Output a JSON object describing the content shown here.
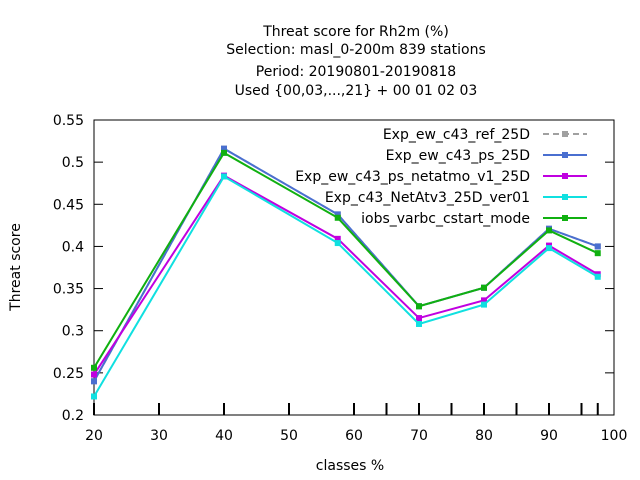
{
  "chart_data": {
    "type": "line",
    "title_lines": [
      "Threat score  for Rh2m (%)",
      "Selection: masl_0-200m    839 stations",
      "Period: 20190801-20190818",
      "Used {00,03,...,21} + 00 01 02 03"
    ],
    "xlabel": "classes %",
    "ylabel": "Threat score",
    "xlim": [
      20,
      100
    ],
    "ylim": [
      0.2,
      0.55
    ],
    "x_ticks": [
      20,
      30,
      40,
      50,
      60,
      70,
      80,
      90,
      100
    ],
    "y_ticks": [
      0.2,
      0.25,
      0.3,
      0.35,
      0.4,
      0.45,
      0.5,
      0.55
    ],
    "y_tick_labels": [
      "0.2",
      "0.25",
      "0.3",
      "0.35",
      "0.4",
      "0.45",
      "0.5",
      "0.55"
    ],
    "minor_x_ticks": [
      20,
      30,
      40,
      50,
      60,
      65,
      70,
      75,
      80,
      85,
      90,
      95,
      97.5
    ],
    "grid": false,
    "legend_position": "top-right",
    "x": [
      20,
      40,
      57.5,
      70,
      80,
      90,
      97.5
    ],
    "series": [
      {
        "name": "Exp_ew_c43_ref_25D",
        "color": "#a0a0a0",
        "dashed": true,
        "values": [
          0.24,
          0.516,
          0.438,
          0.329,
          0.351,
          0.421,
          0.4
        ]
      },
      {
        "name": "Exp_ew_c43_ps_25D",
        "color": "#4a6fd0",
        "dashed": false,
        "values": [
          0.24,
          0.516,
          0.438,
          0.329,
          0.351,
          0.421,
          0.4
        ]
      },
      {
        "name": "Exp_ew_c43_ps_netatmo_v1_25D",
        "color": "#c000e0",
        "dashed": false,
        "values": [
          0.248,
          0.484,
          0.409,
          0.315,
          0.336,
          0.401,
          0.367
        ]
      },
      {
        "name": "Exp_c43_NetAtv3_25D_ver01",
        "color": "#10e0e0",
        "dashed": false,
        "values": [
          0.222,
          0.483,
          0.404,
          0.308,
          0.331,
          0.398,
          0.364
        ]
      },
      {
        "name": "iobs_varbc_cstart_mode",
        "color": "#10b010",
        "dashed": false,
        "values": [
          0.256,
          0.511,
          0.434,
          0.329,
          0.351,
          0.419,
          0.392
        ]
      }
    ]
  }
}
